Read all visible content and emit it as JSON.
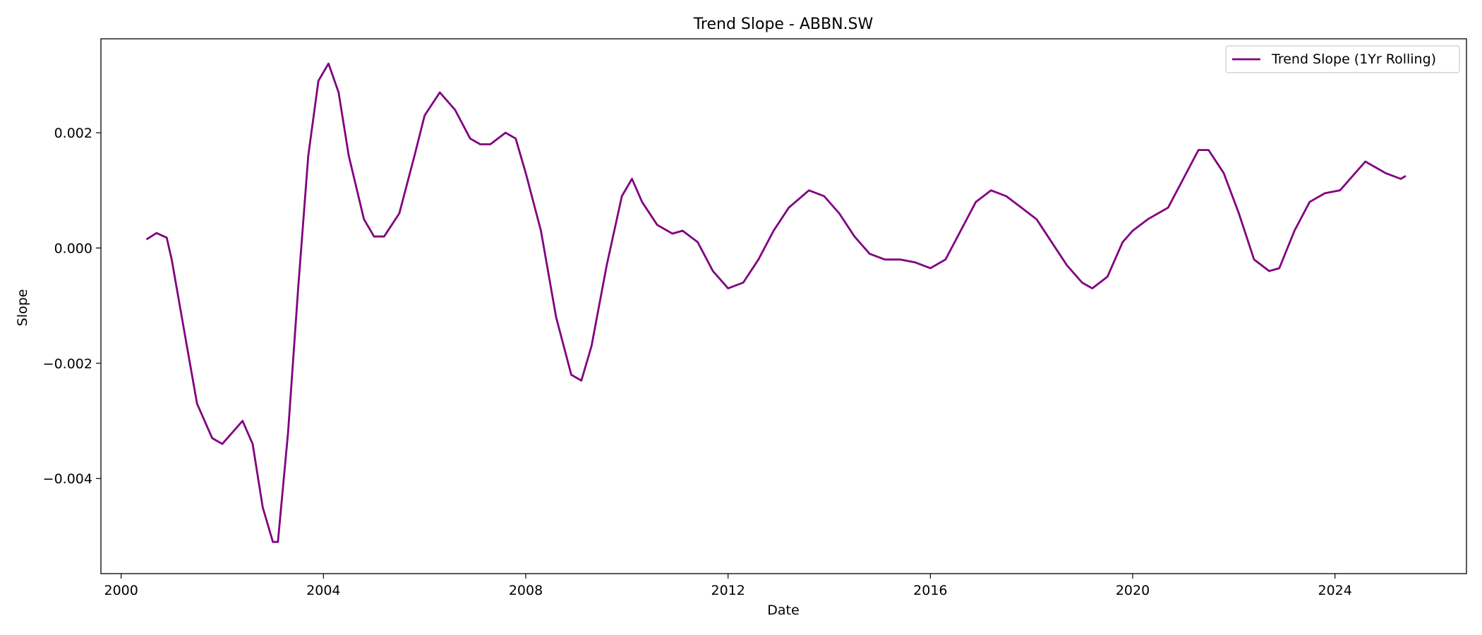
{
  "chart_data": {
    "type": "line",
    "title": "Trend Slope - ABBN.SW",
    "xlabel": "Date",
    "ylabel": "Slope",
    "xlim": [
      1999.6,
      2026.6
    ],
    "ylim": [
      -0.00565,
      0.00363
    ],
    "x_ticks": [
      2000,
      2004,
      2008,
      2012,
      2016,
      2020,
      2024
    ],
    "x_tick_labels": [
      "2000",
      "2004",
      "2008",
      "2012",
      "2016",
      "2020",
      "2024"
    ],
    "y_ticks": [
      -0.004,
      -0.002,
      0.0,
      0.002
    ],
    "y_tick_labels": [
      "−0.004",
      "−0.002",
      "0.000",
      "0.002"
    ],
    "grid": false,
    "legend_position": "top-right",
    "series": [
      {
        "name": "Trend Slope (1Yr Rolling)",
        "color": "#800080",
        "x": [
          2000.5,
          2000.7,
          2000.9,
          2001.0,
          2001.3,
          2001.5,
          2001.8,
          2002.0,
          2002.2,
          2002.4,
          2002.6,
          2002.8,
          2003.0,
          2003.1,
          2003.3,
          2003.5,
          2003.7,
          2003.9,
          2004.1,
          2004.3,
          2004.5,
          2004.8,
          2005.0,
          2005.2,
          2005.5,
          2005.8,
          2006.0,
          2006.3,
          2006.6,
          2006.9,
          2007.1,
          2007.3,
          2007.6,
          2007.8,
          2008.0,
          2008.3,
          2008.6,
          2008.9,
          2009.1,
          2009.3,
          2009.6,
          2009.9,
          2010.1,
          2010.3,
          2010.6,
          2010.9,
          2011.1,
          2011.4,
          2011.7,
          2012.0,
          2012.3,
          2012.6,
          2012.9,
          2013.2,
          2013.6,
          2013.9,
          2014.2,
          2014.5,
          2014.8,
          2015.1,
          2015.4,
          2015.7,
          2016.0,
          2016.3,
          2016.6,
          2016.9,
          2017.2,
          2017.5,
          2017.8,
          2018.1,
          2018.4,
          2018.7,
          2019.0,
          2019.2,
          2019.5,
          2019.8,
          2020.0,
          2020.3,
          2020.7,
          2021.0,
          2021.3,
          2021.5,
          2021.8,
          2022.1,
          2022.4,
          2022.7,
          2022.9,
          2023.2,
          2023.5,
          2023.8,
          2024.1,
          2024.4,
          2024.6,
          2024.8,
          2025.0,
          2025.3,
          2025.4
        ],
        "y": [
          0.00015,
          0.00026,
          0.00018,
          -0.0002,
          -0.0017,
          -0.0027,
          -0.0033,
          -0.0034,
          -0.0032,
          -0.003,
          -0.0034,
          -0.0045,
          -0.0051,
          -0.0051,
          -0.0032,
          -0.0007,
          0.0016,
          0.0029,
          0.0032,
          0.0027,
          0.0016,
          0.0005,
          0.0002,
          0.0002,
          0.0006,
          0.0016,
          0.0023,
          0.0027,
          0.0024,
          0.0019,
          0.0018,
          0.0018,
          0.002,
          0.0019,
          0.0013,
          0.0003,
          -0.0012,
          -0.0022,
          -0.0023,
          -0.0017,
          -0.0003,
          0.0009,
          0.0012,
          0.0008,
          0.0004,
          0.00025,
          0.0003,
          0.0001,
          -0.0004,
          -0.0007,
          -0.0006,
          -0.0002,
          0.0003,
          0.0007,
          0.001,
          0.0009,
          0.0006,
          0.0002,
          -0.0001,
          -0.0002,
          -0.0002,
          -0.00025,
          -0.00035,
          -0.0002,
          0.0003,
          0.0008,
          0.001,
          0.0009,
          0.0007,
          0.0005,
          0.0001,
          -0.0003,
          -0.0006,
          -0.0007,
          -0.0005,
          0.0001,
          0.0003,
          0.0005,
          0.0007,
          0.0012,
          0.0017,
          0.0017,
          0.0013,
          0.0006,
          -0.0002,
          -0.0004,
          -0.00035,
          0.0003,
          0.0008,
          0.00095,
          0.001,
          0.0013,
          0.0015,
          0.0014,
          0.0013,
          0.0012,
          0.00125
        ]
      }
    ]
  }
}
